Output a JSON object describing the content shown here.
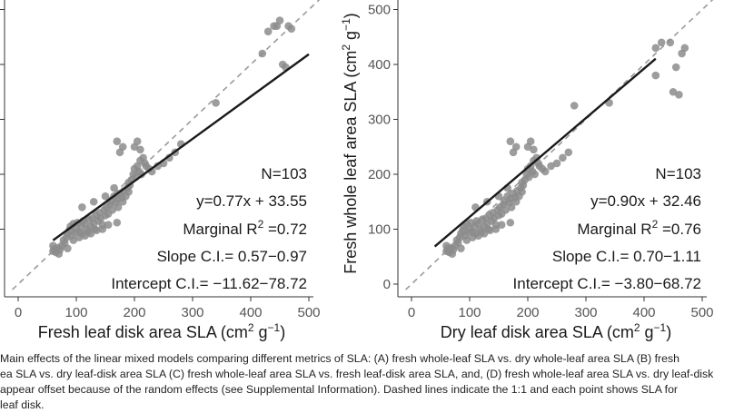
{
  "chart_data": [
    {
      "type": "scatter",
      "panel": "left",
      "xlabel": "Fresh leaf disk area SLA (cm² g⁻¹)",
      "ylabel": "",
      "xlim": [
        -20,
        510
      ],
      "ylim": [
        -20,
        510
      ],
      "xticks": [
        "0",
        "100",
        "200",
        "300",
        "400",
        "500"
      ],
      "yticks": [],
      "grid": false,
      "reference_line": "1:1 dashed",
      "fit": {
        "slope": 0.77,
        "intercept": 33.55,
        "x_range": [
          60,
          500
        ]
      },
      "annotations": [
        "N=103",
        "y=0.77x + 33.55",
        "Marginal R² =0.72",
        "Slope C.I.= 0.57−0.97",
        "Intercept C.I.= −11.62−78.72"
      ],
      "points": [
        [
          60,
          60
        ],
        [
          62,
          64
        ],
        [
          65,
          58
        ],
        [
          68,
          66
        ],
        [
          72,
          63
        ],
        [
          75,
          70
        ],
        [
          78,
          80
        ],
        [
          80,
          75
        ],
        [
          83,
          85
        ],
        [
          85,
          92
        ],
        [
          88,
          98
        ],
        [
          90,
          105
        ],
        [
          92,
          88
        ],
        [
          95,
          110
        ],
        [
          98,
          95
        ],
        [
          100,
          100
        ],
        [
          102,
          112
        ],
        [
          105,
          95
        ],
        [
          108,
          105
        ],
        [
          110,
          92
        ],
        [
          112,
          115
        ],
        [
          115,
          110
        ],
        [
          118,
          100
        ],
        [
          120,
          95
        ],
        [
          122,
          118
        ],
        [
          125,
          105
        ],
        [
          128,
          120
        ],
        [
          130,
          110
        ],
        [
          132,
          100
        ],
        [
          135,
          125
        ],
        [
          138,
          115
        ],
        [
          140,
          130
        ],
        [
          142,
          120
        ],
        [
          145,
          108
        ],
        [
          148,
          135
        ],
        [
          150,
          125
        ],
        [
          152,
          140
        ],
        [
          155,
          128
        ],
        [
          158,
          145
        ],
        [
          160,
          150
        ],
        [
          162,
          135
        ],
        [
          165,
          160
        ],
        [
          168,
          148
        ],
        [
          170,
          155
        ],
        [
          172,
          140
        ],
        [
          175,
          165
        ],
        [
          178,
          158
        ],
        [
          180,
          150
        ],
        [
          182,
          170
        ],
        [
          185,
          160
        ],
        [
          188,
          175
        ],
        [
          190,
          168
        ],
        [
          192,
          180
        ],
        [
          195,
          190
        ],
        [
          198,
          200
        ],
        [
          200,
          210
        ],
        [
          202,
          195
        ],
        [
          205,
          215
        ],
        [
          208,
          205
        ],
        [
          210,
          225
        ],
        [
          212,
          200
        ],
        [
          215,
          230
        ],
        [
          218,
          220
        ],
        [
          175,
          240
        ],
        [
          180,
          250
        ],
        [
          200,
          250
        ],
        [
          205,
          260
        ],
        [
          220,
          215
        ],
        [
          225,
          210
        ],
        [
          230,
          205
        ],
        [
          240,
          215
        ],
        [
          250,
          220
        ],
        [
          260,
          230
        ],
        [
          270,
          240
        ],
        [
          280,
          255
        ],
        [
          170,
          260
        ],
        [
          210,
          245
        ],
        [
          110,
          140
        ],
        [
          130,
          150
        ],
        [
          150,
          160
        ],
        [
          165,
          175
        ],
        [
          190,
          185
        ],
        [
          60,
          70
        ],
        [
          70,
          55
        ],
        [
          85,
          65
        ],
        [
          95,
          80
        ],
        [
          105,
          85
        ],
        [
          115,
          88
        ],
        [
          125,
          92
        ],
        [
          135,
          98
        ],
        [
          145,
          100
        ],
        [
          155,
          108
        ],
        [
          170,
          112
        ],
        [
          340,
          330
        ],
        [
          420,
          420
        ],
        [
          430,
          460
        ],
        [
          440,
          470
        ],
        [
          445,
          470
        ],
        [
          450,
          480
        ],
        [
          455,
          400
        ],
        [
          460,
          395
        ],
        [
          465,
          470
        ],
        [
          470,
          465
        ]
      ]
    },
    {
      "type": "scatter",
      "panel": "right",
      "xlabel": "Dry leaf disk area SLA (cm² g⁻¹)",
      "ylabel": "Fresh whole leaf area SLA (cm² g⁻¹)",
      "xlim": [
        -20,
        510
      ],
      "ylim": [
        -20,
        510
      ],
      "xticks": [
        "0",
        "100",
        "200",
        "300",
        "400",
        "500"
      ],
      "yticks": [
        "0",
        "100",
        "200",
        "300",
        "400",
        "500"
      ],
      "grid": false,
      "reference_line": "1:1 dashed",
      "fit": {
        "slope": 0.9,
        "intercept": 32.46,
        "x_range": [
          40,
          420
        ]
      },
      "annotations": [
        "N=103",
        "y=0.90x + 32.46",
        "Marginal R² =0.76",
        "Slope C.I.= 0.70−1.11",
        "Intercept C.I.= −3.80−68.72"
      ],
      "points": [
        [
          60,
          60
        ],
        [
          62,
          64
        ],
        [
          65,
          58
        ],
        [
          68,
          66
        ],
        [
          72,
          63
        ],
        [
          75,
          70
        ],
        [
          78,
          80
        ],
        [
          80,
          75
        ],
        [
          83,
          85
        ],
        [
          85,
          92
        ],
        [
          88,
          98
        ],
        [
          90,
          105
        ],
        [
          92,
          88
        ],
        [
          95,
          110
        ],
        [
          98,
          95
        ],
        [
          100,
          100
        ],
        [
          102,
          112
        ],
        [
          105,
          95
        ],
        [
          108,
          105
        ],
        [
          110,
          92
        ],
        [
          112,
          115
        ],
        [
          115,
          110
        ],
        [
          118,
          100
        ],
        [
          120,
          95
        ],
        [
          122,
          118
        ],
        [
          125,
          105
        ],
        [
          128,
          120
        ],
        [
          130,
          110
        ],
        [
          132,
          100
        ],
        [
          135,
          125
        ],
        [
          138,
          115
        ],
        [
          140,
          130
        ],
        [
          142,
          120
        ],
        [
          145,
          108
        ],
        [
          148,
          135
        ],
        [
          150,
          125
        ],
        [
          152,
          140
        ],
        [
          155,
          128
        ],
        [
          158,
          145
        ],
        [
          160,
          150
        ],
        [
          162,
          135
        ],
        [
          165,
          160
        ],
        [
          168,
          148
        ],
        [
          170,
          155
        ],
        [
          172,
          140
        ],
        [
          175,
          165
        ],
        [
          178,
          158
        ],
        [
          180,
          150
        ],
        [
          182,
          170
        ],
        [
          185,
          160
        ],
        [
          188,
          175
        ],
        [
          190,
          168
        ],
        [
          192,
          180
        ],
        [
          195,
          190
        ],
        [
          198,
          200
        ],
        [
          200,
          210
        ],
        [
          202,
          195
        ],
        [
          205,
          215
        ],
        [
          208,
          205
        ],
        [
          210,
          225
        ],
        [
          212,
          200
        ],
        [
          215,
          230
        ],
        [
          218,
          220
        ],
        [
          175,
          240
        ],
        [
          180,
          250
        ],
        [
          200,
          250
        ],
        [
          205,
          260
        ],
        [
          220,
          215
        ],
        [
          225,
          210
        ],
        [
          230,
          205
        ],
        [
          240,
          215
        ],
        [
          250,
          220
        ],
        [
          260,
          230
        ],
        [
          270,
          240
        ],
        [
          280,
          325
        ],
        [
          170,
          260
        ],
        [
          210,
          245
        ],
        [
          110,
          140
        ],
        [
          130,
          150
        ],
        [
          150,
          160
        ],
        [
          165,
          175
        ],
        [
          190,
          185
        ],
        [
          60,
          70
        ],
        [
          70,
          55
        ],
        [
          85,
          65
        ],
        [
          95,
          80
        ],
        [
          105,
          85
        ],
        [
          115,
          88
        ],
        [
          125,
          92
        ],
        [
          135,
          98
        ],
        [
          145,
          100
        ],
        [
          155,
          108
        ],
        [
          170,
          112
        ],
        [
          340,
          330
        ],
        [
          420,
          380
        ],
        [
          420,
          430
        ],
        [
          430,
          440
        ],
        [
          445,
          440
        ],
        [
          450,
          350
        ],
        [
          460,
          345
        ],
        [
          465,
          420
        ],
        [
          470,
          430
        ],
        [
          455,
          395
        ]
      ]
    }
  ],
  "caption": {
    "lines": [
      "Main effects of the linear mixed models comparing different metrics of SLA: (A) fresh whole-leaf SLA vs. dry whole-leaf area SLA (B) fresh",
      "ea SLA vs. dry leaf-disk area SLA (C) fresh whole-leaf area SLA vs. fresh leaf-disk area SLA, and, (D) fresh whole-leaf area SLA vs. dry leaf-disk",
      "appear offset because of the random effects (see Supplemental Information). Dashed lines indicate the 1:1 and each point shows SLA for",
      "leaf disk."
    ]
  },
  "colors": {
    "points": "#8c8c8c",
    "fit_line": "#1a1a1a",
    "ref_line": "#9a9a9a",
    "axis": "#333333"
  }
}
